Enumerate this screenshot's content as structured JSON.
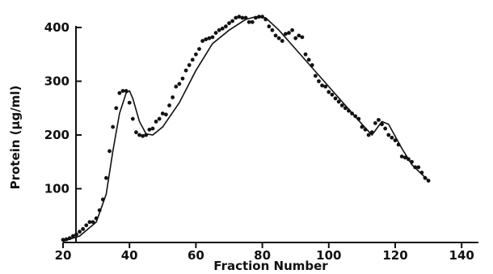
{
  "chart_data": {
    "type": "scatter",
    "xlabel": "Fraction Number",
    "ylabel": "Protein (µg/ml)",
    "xlim": [
      20,
      145
    ],
    "ylim": [
      0,
      420
    ],
    "x_ticks": [
      20,
      40,
      60,
      80,
      100,
      120,
      140
    ],
    "y_ticks": [
      100,
      200,
      300,
      400
    ],
    "x_tick_labels": [
      "20",
      "40",
      "60",
      "80",
      "100",
      "120",
      "140"
    ],
    "y_tick_labels": [
      "100",
      "200",
      "300",
      "400"
    ],
    "grid": false,
    "legend": "none",
    "colors": {
      "ink": "#111111"
    },
    "series": [
      {
        "kind": "points",
        "x": [
          20,
          21,
          22,
          23,
          24,
          25,
          26,
          27,
          28,
          29,
          30,
          31,
          32,
          33,
          34,
          35,
          36,
          37,
          38,
          39,
          40,
          41,
          42,
          43,
          44,
          45,
          46,
          47,
          48,
          49,
          50,
          51,
          52,
          53,
          54,
          55,
          56,
          57,
          58,
          59,
          60,
          61,
          62,
          63,
          64,
          65,
          66,
          67,
          68,
          69,
          70,
          71,
          72,
          73,
          74,
          75,
          76,
          77,
          78,
          79,
          80,
          81,
          82,
          83,
          84,
          85,
          86,
          87,
          88,
          89,
          90,
          91,
          92,
          93,
          94,
          95,
          96,
          97,
          98,
          99,
          100,
          101,
          102,
          103,
          104,
          105,
          106,
          107,
          108,
          109,
          110,
          111,
          112,
          113,
          114,
          115,
          116,
          117,
          118,
          119,
          120,
          121,
          122,
          123,
          124,
          125,
          126,
          127,
          128,
          129,
          130
        ],
        "y": [
          5,
          6,
          8,
          12,
          15,
          20,
          25,
          32,
          38,
          38,
          45,
          60,
          80,
          120,
          170,
          215,
          250,
          278,
          282,
          282,
          260,
          230,
          205,
          200,
          198,
          200,
          210,
          212,
          225,
          230,
          240,
          238,
          255,
          270,
          290,
          295,
          305,
          320,
          330,
          340,
          350,
          360,
          375,
          378,
          380,
          382,
          390,
          395,
          398,
          402,
          408,
          412,
          418,
          420,
          418,
          418,
          410,
          410,
          418,
          420,
          420,
          415,
          402,
          395,
          385,
          380,
          375,
          388,
          390,
          395,
          380,
          385,
          382,
          350,
          340,
          330,
          310,
          300,
          292,
          290,
          280,
          275,
          268,
          262,
          255,
          250,
          245,
          240,
          235,
          230,
          215,
          210,
          200,
          205,
          222,
          228,
          220,
          212,
          200,
          195,
          190,
          182,
          160,
          158,
          155,
          150,
          140,
          140,
          130,
          120,
          115
        ]
      },
      {
        "kind": "fit-line",
        "x": [
          20,
          25,
          30,
          33,
          35,
          37,
          39,
          40,
          41,
          43,
          45,
          47,
          50,
          55,
          60,
          65,
          70,
          75,
          78,
          81,
          85,
          90,
          95,
          100,
          105,
          110,
          113,
          116,
          118,
          122,
          125,
          130
        ],
        "y": [
          2,
          12,
          38,
          90,
          170,
          240,
          278,
          282,
          268,
          225,
          202,
          200,
          215,
          260,
          320,
          370,
          395,
          415,
          420,
          418,
          395,
          360,
          325,
          290,
          255,
          220,
          200,
          225,
          220,
          175,
          145,
          115
        ]
      }
    ]
  }
}
